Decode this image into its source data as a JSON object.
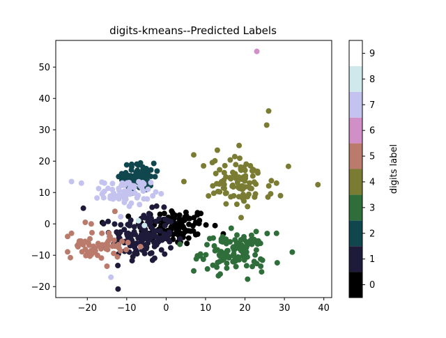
{
  "chart_data": {
    "type": "scatter",
    "title": "digits-kmeans--Predicted Labels",
    "xlabel": "",
    "ylabel": "",
    "xlim": [
      -28,
      42
    ],
    "ylim": [
      -23.5,
      58.5
    ],
    "xticks": [
      -20,
      -10,
      0,
      10,
      20,
      30,
      40
    ],
    "xtick_labels": [
      "−20",
      "−10",
      "0",
      "10",
      "20",
      "30",
      "40"
    ],
    "yticks": [
      -20,
      -10,
      0,
      10,
      20,
      30,
      40,
      50
    ],
    "ytick_labels": [
      "−20",
      "−10",
      "0",
      "10",
      "20",
      "30",
      "40",
      "50"
    ],
    "grid": false,
    "colorbar": {
      "label": "digits label",
      "range": [
        -0.5,
        9.5
      ],
      "ticks": [
        0,
        1,
        2,
        3,
        4,
        5,
        6,
        7,
        8,
        9
      ],
      "tick_labels": [
        "0",
        "1",
        "2",
        "3",
        "4",
        "5",
        "6",
        "7",
        "8",
        "9"
      ],
      "colors": [
        "#000000",
        "#1e1b3a",
        "#10464d",
        "#2f6e3a",
        "#7a7c33",
        "#bb7b6c",
        "#d18fc8",
        "#c4c2ef",
        "#cfe8ec",
        "#ffffff"
      ]
    },
    "clusters": [
      {
        "label": 0,
        "cx": 2,
        "cy": -1,
        "sx": 4.5,
        "sy": 3,
        "n": 120
      },
      {
        "label": 1,
        "cx": -6,
        "cy": -4,
        "sx": 4,
        "sy": 4,
        "n": 140
      },
      {
        "label": 2,
        "cx": -7,
        "cy": 15,
        "sx": 2,
        "sy": 2.2,
        "n": 90
      },
      {
        "label": 3,
        "cx": 17,
        "cy": -9,
        "sx": 4,
        "sy": 3,
        "n": 110
      },
      {
        "label": 4,
        "cx": 19,
        "cy": 13,
        "sx": 4,
        "sy": 4,
        "n": 90
      },
      {
        "label": 5,
        "cx": -17,
        "cy": -7,
        "sx": 3.5,
        "sy": 2,
        "n": 55
      },
      {
        "label": 7,
        "cx": -10,
        "cy": 10,
        "sx": 3,
        "sy": 2,
        "n": 70
      }
    ],
    "points": [
      {
        "x": 23,
        "y": 55,
        "label": 6
      },
      {
        "x": 26,
        "y": 36,
        "label": 4
      },
      {
        "x": 25.5,
        "y": 31.5,
        "label": 4
      },
      {
        "x": 38.5,
        "y": 12.5,
        "label": 4
      },
      {
        "x": 28,
        "y": 13,
        "label": 4
      },
      {
        "x": 29,
        "y": 9,
        "label": 4
      },
      {
        "x": 32,
        "y": -9,
        "label": 3
      },
      {
        "x": 28,
        "y": -3,
        "label": 3
      },
      {
        "x": -24,
        "y": 13.5,
        "label": 7
      },
      {
        "x": -21.5,
        "y": 13,
        "label": 7
      },
      {
        "x": -14,
        "y": -17,
        "label": 7
      },
      {
        "x": -21,
        "y": 5,
        "label": 1
      },
      {
        "x": -24,
        "y": -3,
        "label": 5
      },
      {
        "x": -25,
        "y": -4,
        "label": 5
      },
      {
        "x": -20.5,
        "y": 0.5,
        "label": 5
      },
      {
        "x": -19,
        "y": 0,
        "label": 5
      },
      {
        "x": -22,
        "y": -5.5,
        "label": 5
      },
      {
        "x": -15,
        "y": -13.5,
        "label": 5
      },
      {
        "x": -13,
        "y": 4,
        "label": 5
      },
      {
        "x": -19,
        "y": -8.5,
        "label": 5
      },
      {
        "x": -7,
        "y": 1,
        "label": 8
      },
      {
        "x": -5.5,
        "y": -0.5,
        "label": 8
      },
      {
        "x": 18.5,
        "y": 25,
        "label": 4
      },
      {
        "x": 13,
        "y": 23.5,
        "label": 4
      },
      {
        "x": 7,
        "y": 22,
        "label": 4
      },
      {
        "x": 9.5,
        "y": 18.5,
        "label": 4
      },
      {
        "x": 4.5,
        "y": 13.5,
        "label": 4
      },
      {
        "x": 24,
        "y": -13.5,
        "label": 3
      },
      {
        "x": 7,
        "y": -15,
        "label": 3
      },
      {
        "x": 3.5,
        "y": -6.5,
        "label": 3
      }
    ]
  }
}
